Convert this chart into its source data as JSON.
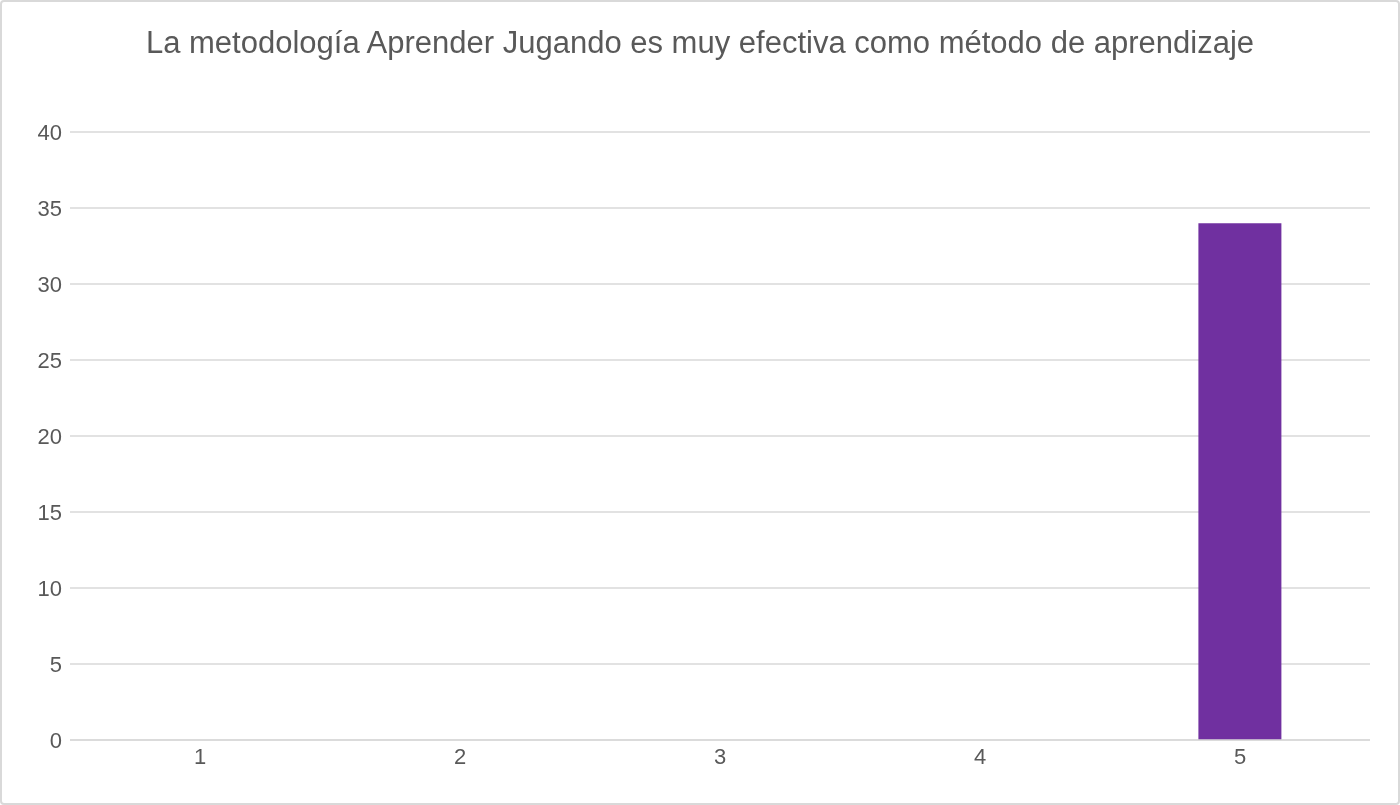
{
  "chart_data": {
    "type": "bar",
    "title": "La metodología Aprender Jugando es muy efectiva como método de aprendizaje",
    "categories": [
      "1",
      "2",
      "3",
      "4",
      "5"
    ],
    "values": [
      0,
      0,
      0,
      0,
      34
    ],
    "color": "#7030a0",
    "ylim": [
      0,
      40
    ],
    "yticks": [
      0,
      5,
      10,
      15,
      20,
      25,
      30,
      35,
      40
    ],
    "grid": "y"
  }
}
